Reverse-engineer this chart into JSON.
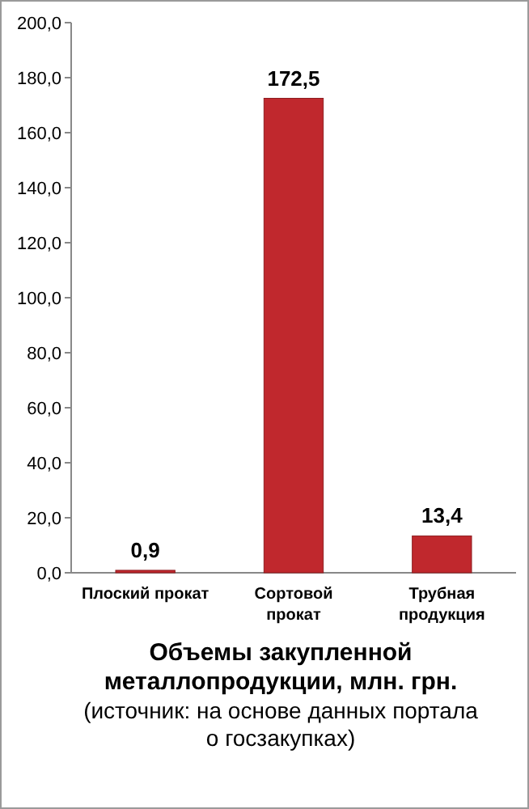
{
  "chart_data": {
    "type": "bar",
    "title": "Объемы закупленной металлопродукции, млн. грн.",
    "annotations": [
      "(источник: на основе данных портала о госзакупках)"
    ],
    "categories": [
      "Плоский прокат",
      "Сортовой прокат",
      "Трубная продукция"
    ],
    "values": [
      0.9,
      172.5,
      13.4
    ],
    "color": "#c0282d",
    "value_labels": [
      "0,9",
      "172,5",
      "13,4"
    ],
    "ylim": [
      0,
      200
    ],
    "yticks": [
      {
        "value": 0,
        "label": "0,0"
      },
      {
        "value": 20,
        "label": "20,0"
      },
      {
        "value": 40,
        "label": "40,0"
      },
      {
        "value": 60,
        "label": "60,0"
      },
      {
        "value": 80,
        "label": "80,0"
      },
      {
        "value": 100,
        "label": "100,0"
      },
      {
        "value": 120,
        "label": "120,0"
      },
      {
        "value": 140,
        "label": "140,0"
      },
      {
        "value": 160,
        "label": "160,0"
      },
      {
        "value": 180,
        "label": "180,0"
      },
      {
        "value": 200,
        "label": "200,0"
      }
    ],
    "grid": false
  }
}
